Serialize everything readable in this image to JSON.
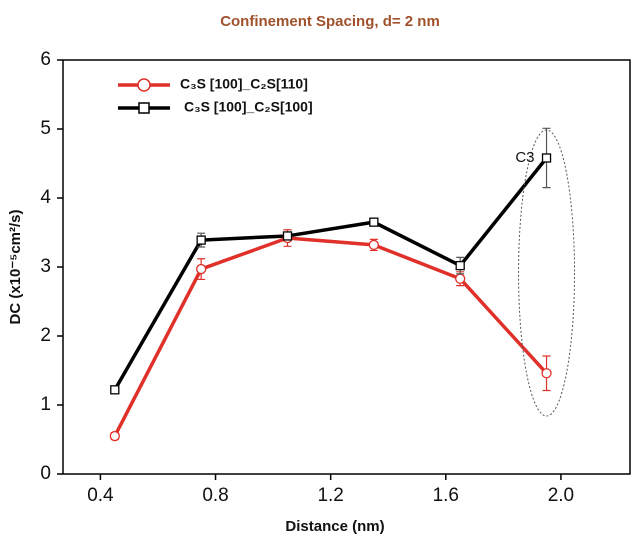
{
  "chart_data": {
    "type": "line",
    "title": "Confinement Spacing, d= 2 nm",
    "x_label": "Distance (nm)",
    "y_label": "DC (x10⁻⁵cm²/s)",
    "annotation": "C3",
    "x": [
      0.45,
      0.75,
      1.05,
      1.35,
      1.65,
      1.95
    ],
    "series": [
      {
        "name": "C₃S [100]_C₂S[110]",
        "color": "#e0302a",
        "marker": "circle",
        "values": [
          0.55,
          2.97,
          3.42,
          3.32,
          2.83,
          1.46
        ],
        "errors": [
          0.05,
          0.15,
          0.12,
          0.08,
          0.1,
          0.25
        ]
      },
      {
        "name": "C₃S [100]_C₂S[100]",
        "color": "#000000",
        "marker": "square",
        "values": [
          1.22,
          3.39,
          3.45,
          3.65,
          3.02,
          4.58
        ],
        "errors": [
          0.03,
          0.1,
          0.05,
          0.03,
          0.12,
          0.43
        ]
      }
    ],
    "xlim": [
      0.27,
      2.24
    ],
    "ylim": [
      0,
      6
    ],
    "xticks": [
      0.4,
      0.8,
      1.2,
      1.6,
      {
        "value": 2,
        "label": "2.0"
      }
    ],
    "yticks": [
      0,
      1,
      2,
      3,
      4,
      5,
      6
    ],
    "legend": "upper left",
    "grid": false
  }
}
